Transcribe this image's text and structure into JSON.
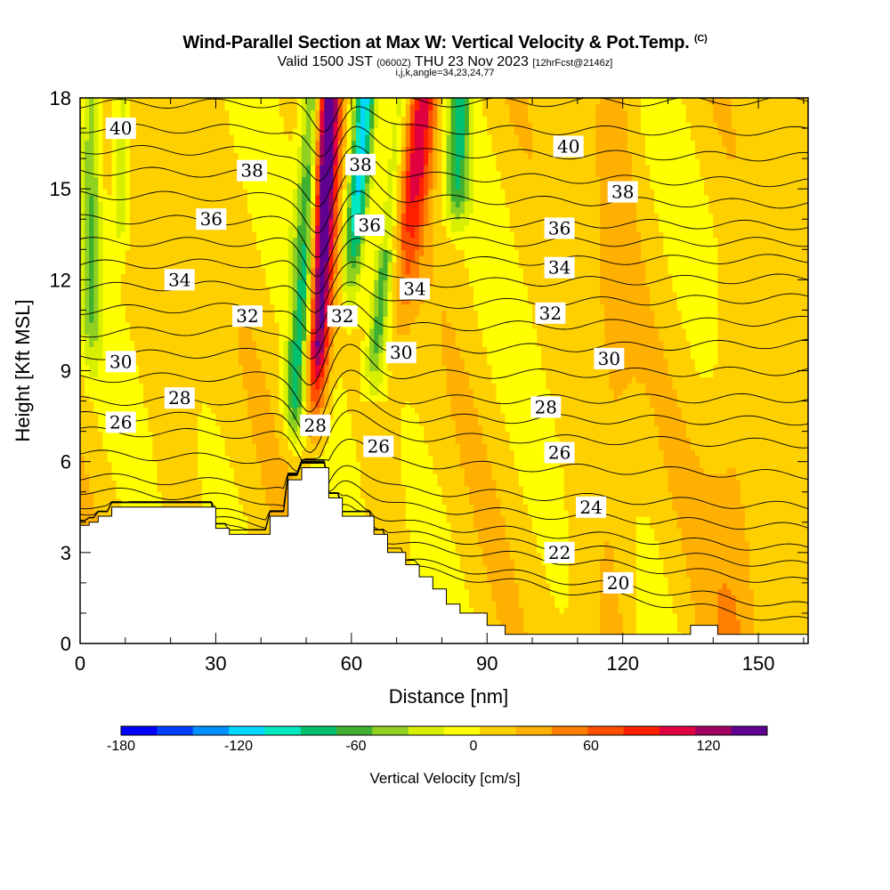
{
  "title": {
    "main": "Wind-Parallel Section at Max W: Vertical Velocity & Pot.Temp.",
    "copyright": "(C)",
    "valid_prefix": "Valid 1500 JST",
    "valid_utc": "(0600Z)",
    "valid_date": "THU 23 Nov 2023",
    "forecast": "[12hrFcst@2146z]",
    "indices": "i,j,k,angle=34,23,24,77"
  },
  "chart_data": {
    "type": "heatmap",
    "title": "Wind-Parallel Section at Max W: Vertical Velocity & Pot.Temp.",
    "xlabel": "Distance [nm]",
    "ylabel": "Height [Kft MSL]",
    "xlim": [
      0,
      161
    ],
    "ylim": [
      0,
      18
    ],
    "x_ticks": [
      0,
      30,
      60,
      90,
      120,
      150
    ],
    "y_ticks": [
      0,
      3,
      6,
      9,
      12,
      15,
      18
    ],
    "colorbar": {
      "label": "Vertical Velocity [cm/s]",
      "min": -180,
      "max": 150,
      "tick_values": [
        -180,
        -120,
        -60,
        0,
        60,
        120
      ],
      "tick_labels": [
        "-180",
        "-120",
        "-60",
        "0",
        "60",
        "120"
      ],
      "colors": [
        "#0000ff",
        "#0040ff",
        "#0090ff",
        "#00d8ff",
        "#00e8c0",
        "#00c070",
        "#40b030",
        "#90d020",
        "#d8f000",
        "#ffff00",
        "#ffd000",
        "#ffb000",
        "#ff8000",
        "#ff5000",
        "#ff2000",
        "#e00040",
        "#a00060",
        "#600090"
      ]
    },
    "terrain": [
      [
        0,
        3.9
      ],
      [
        2,
        3.9
      ],
      [
        2,
        4.0
      ],
      [
        4,
        4.0
      ],
      [
        4,
        4.2
      ],
      [
        7,
        4.2
      ],
      [
        7,
        4.5
      ],
      [
        30,
        4.5
      ],
      [
        30,
        3.8
      ],
      [
        33,
        3.8
      ],
      [
        33,
        3.6
      ],
      [
        42,
        3.6
      ],
      [
        42,
        4.2
      ],
      [
        46,
        4.2
      ],
      [
        46,
        5.4
      ],
      [
        49,
        5.4
      ],
      [
        49,
        5.8
      ],
      [
        55,
        5.8
      ],
      [
        55,
        4.8
      ],
      [
        58,
        4.8
      ],
      [
        58,
        4.2
      ],
      [
        65,
        4.2
      ],
      [
        65,
        3.6
      ],
      [
        68,
        3.6
      ],
      [
        68,
        3.0
      ],
      [
        72,
        3.0
      ],
      [
        72,
        2.6
      ],
      [
        75,
        2.6
      ],
      [
        75,
        2.2
      ],
      [
        78,
        2.2
      ],
      [
        78,
        1.8
      ],
      [
        81,
        1.8
      ],
      [
        81,
        1.3
      ],
      [
        84,
        1.3
      ],
      [
        84,
        1.0
      ],
      [
        90,
        1.0
      ],
      [
        90,
        0.6
      ],
      [
        94,
        0.6
      ],
      [
        94,
        0.3
      ],
      [
        135,
        0.3
      ],
      [
        135,
        0.6
      ],
      [
        141,
        0.6
      ],
      [
        141,
        0.3
      ],
      [
        161,
        0.3
      ]
    ],
    "updraft_core": {
      "x_top": 55,
      "x_bottom": 52,
      "y_bottom": 8,
      "y_top": 18,
      "max": 150
    },
    "downdraft_core": {
      "x_top": 63,
      "x_bottom": 60,
      "y_bottom": 12,
      "y_top": 18,
      "min": -120
    },
    "secondary_updraft": {
      "x_top": 76,
      "x_bottom": 70,
      "y_bottom": 9,
      "y_top": 18,
      "max": 100
    },
    "series": [
      {
        "name": "40",
        "y_left": 17.0,
        "y_right": 16.9
      },
      {
        "name": "38",
        "y_left": 15.6,
        "y_right": 15.2
      },
      {
        "name": "36",
        "y_left": 14.0,
        "y_right": 13.8
      },
      {
        "name": "34",
        "y_left": 12.5,
        "y_right": 12.7
      },
      {
        "name": "32",
        "y_left": 11.0,
        "y_right": 11.4
      },
      {
        "name": "30",
        "y_left": 9.5,
        "y_right": 9.9
      },
      {
        "name": "28",
        "y_left": 8.0,
        "y_right": 8.1
      },
      {
        "name": "26",
        "y_left": 7.0,
        "y_right": 6.6
      },
      {
        "name": "24",
        "y_left": 5.5,
        "y_right": 4.5
      },
      {
        "name": "22",
        "y_left": 4.6,
        "y_right": 3.1
      },
      {
        "name": "20",
        "y_left": 4.2,
        "y_right": 2.0
      }
    ],
    "contour_labels": [
      {
        "text": "40",
        "x": 9,
        "y": 17.0
      },
      {
        "text": "40",
        "x": 108,
        "y": 16.4
      },
      {
        "text": "38",
        "x": 38,
        "y": 15.6
      },
      {
        "text": "38",
        "x": 62,
        "y": 15.8
      },
      {
        "text": "38",
        "x": 120,
        "y": 14.9
      },
      {
        "text": "36",
        "y": 14.0,
        "x": 29
      },
      {
        "text": "36",
        "x": 64,
        "y": 13.8
      },
      {
        "text": "36",
        "x": 106,
        "y": 13.7
      },
      {
        "text": "34",
        "x": 22,
        "y": 12.0
      },
      {
        "text": "34",
        "x": 74,
        "y": 11.7
      },
      {
        "text": "34",
        "x": 106,
        "y": 12.4
      },
      {
        "text": "32",
        "x": 37,
        "y": 10.8
      },
      {
        "text": "32",
        "x": 58,
        "y": 10.8
      },
      {
        "text": "32",
        "x": 104,
        "y": 10.9
      },
      {
        "text": "30",
        "x": 9,
        "y": 9.3
      },
      {
        "text": "30",
        "x": 71,
        "y": 9.6
      },
      {
        "text": "30",
        "x": 117,
        "y": 9.4
      },
      {
        "text": "28",
        "x": 22,
        "y": 8.1
      },
      {
        "text": "28",
        "x": 52,
        "y": 7.2
      },
      {
        "text": "28",
        "x": 103,
        "y": 7.8
      },
      {
        "text": "26",
        "x": 9,
        "y": 7.3
      },
      {
        "text": "26",
        "x": 66,
        "y": 6.5
      },
      {
        "text": "26",
        "x": 106,
        "y": 6.3
      },
      {
        "text": "24",
        "x": 113,
        "y": 4.5
      },
      {
        "text": "22",
        "x": 106,
        "y": 3.0
      },
      {
        "text": "20",
        "x": 119,
        "y": 2.0
      }
    ]
  }
}
